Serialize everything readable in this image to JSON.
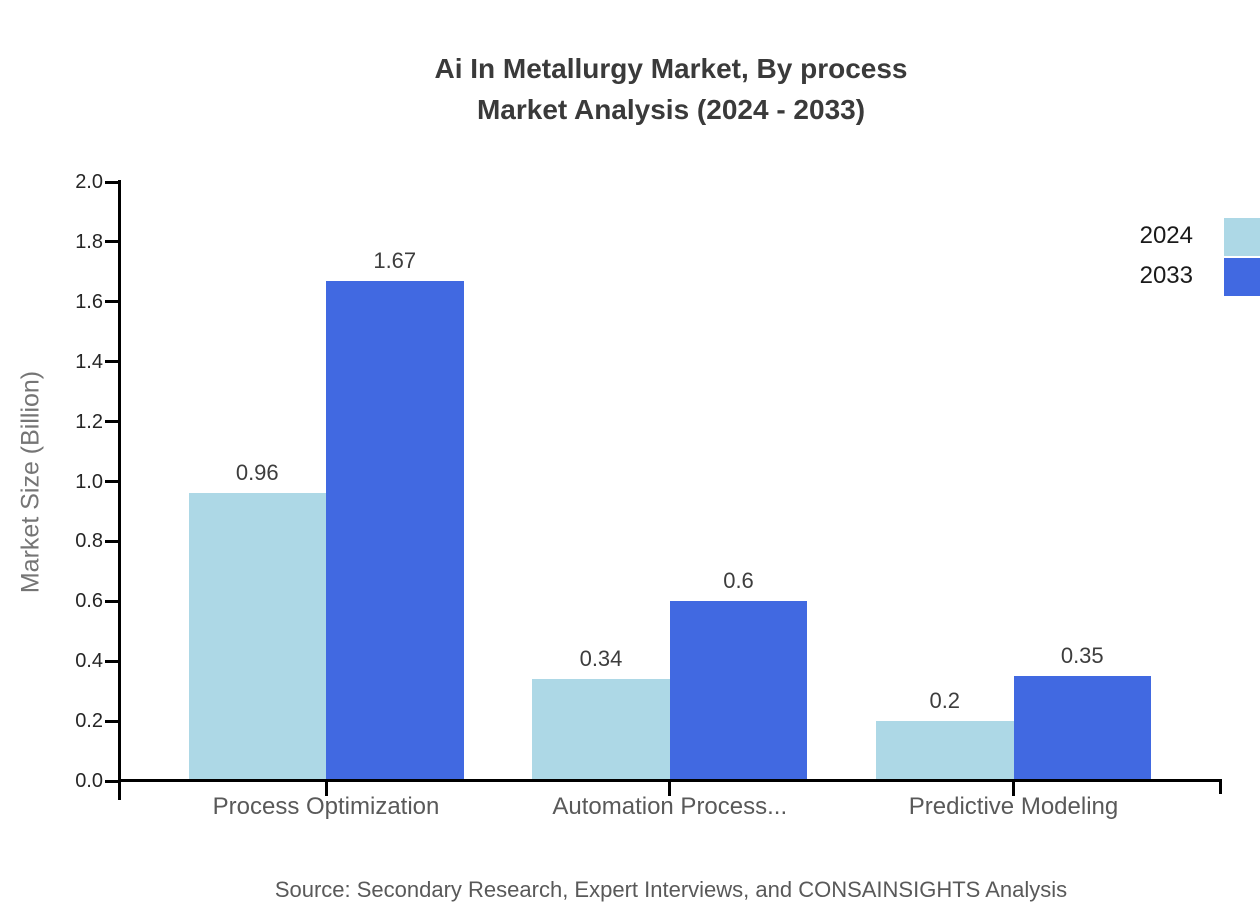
{
  "title": {
    "line1": "Ai In Metallurgy Market, By process",
    "line2": "Market Analysis (2024 - 2033)"
  },
  "chart_data": {
    "type": "bar",
    "categories": [
      "Process Optimization",
      "Automation Process...",
      "Predictive Modeling"
    ],
    "series": [
      {
        "name": "2024",
        "color": "#ADD8E6",
        "values": [
          0.96,
          0.34,
          0.2
        ]
      },
      {
        "name": "2033",
        "color": "#4169E1",
        "values": [
          1.67,
          0.6,
          0.35
        ]
      }
    ],
    "title": "Ai In Metallurgy Market, By process Market Analysis (2024 - 2033)",
    "xlabel": "",
    "ylabel": "Market Size (Billion)",
    "ylim": [
      0,
      2
    ],
    "ytick_step": 0.2,
    "yticks": [
      "0.0",
      "0.2",
      "0.4",
      "0.6",
      "0.8",
      "1.0",
      "1.2",
      "1.4",
      "1.6",
      "1.8",
      "2.0"
    ],
    "grid": false,
    "legend_position": "top-right"
  },
  "source": {
    "text": "Source: Secondary Research, Expert Interviews, and CONSAINSIGHTS Analysis"
  },
  "colors": {
    "series_2024": "#ADD8E6",
    "series_2033": "#4169E1",
    "title_text": "#3A3A3A",
    "axis_line": "#000000",
    "tick_label": "#262626",
    "category_label": "#595959",
    "value_label": "#3D3D3D",
    "axis_title": "#757575",
    "source_text": "#595959",
    "legend_label": "#1A1A1A"
  }
}
